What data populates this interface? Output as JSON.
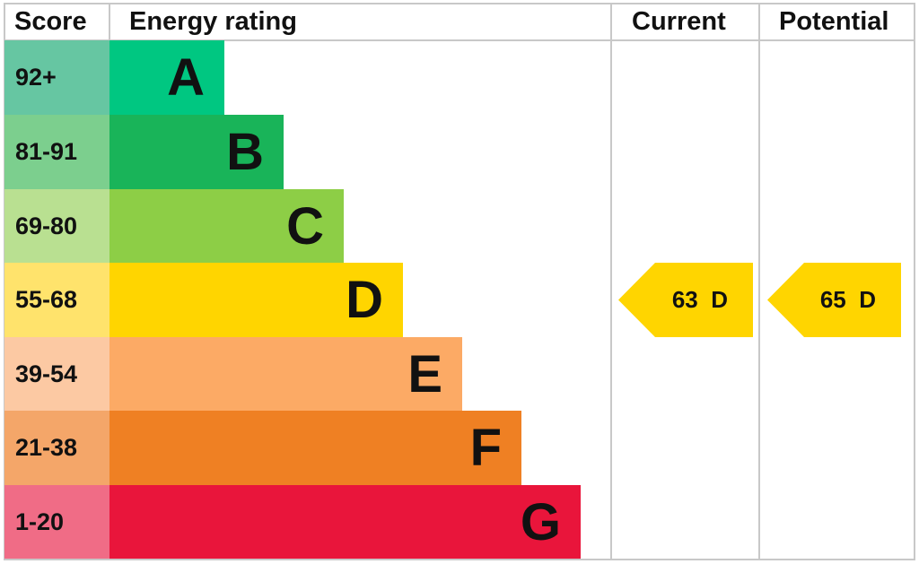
{
  "chart_data": {
    "type": "table",
    "headers": {
      "score": "Score",
      "rating": "Energy rating",
      "current": "Current",
      "potential": "Potential"
    },
    "bands": [
      {
        "score": "92+",
        "letter": "A",
        "color": "#00c781",
        "score_color": "#66c6a2"
      },
      {
        "score": "81-91",
        "letter": "B",
        "color": "#19b459",
        "score_color": "#7ccf8e"
      },
      {
        "score": "69-80",
        "letter": "C",
        "color": "#8dce46",
        "score_color": "#b9e091"
      },
      {
        "score": "55-68",
        "letter": "D",
        "color": "#ffd500",
        "score_color": "#ffe36c"
      },
      {
        "score": "39-54",
        "letter": "E",
        "color": "#fcaa65",
        "score_color": "#fcc9a3"
      },
      {
        "score": "21-38",
        "letter": "F",
        "color": "#ef8023",
        "score_color": "#f4a669"
      },
      {
        "score": "1-20",
        "letter": "G",
        "color": "#e9153b",
        "score_color": "#f06c86"
      }
    ],
    "current": {
      "value": 63,
      "letter": "D",
      "label": "63  D",
      "color": "#ffd500"
    },
    "potential": {
      "value": 65,
      "letter": "D",
      "label": "65  D",
      "color": "#ffd500"
    }
  }
}
